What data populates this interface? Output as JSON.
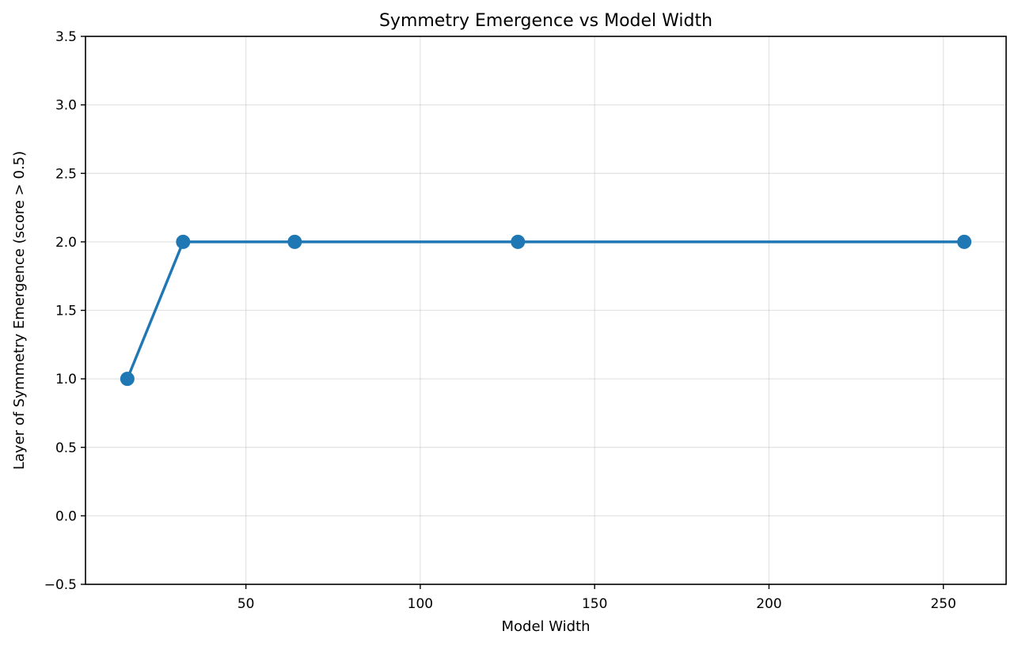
{
  "chart_data": {
    "type": "line",
    "title": "Symmetry Emergence vs Model Width",
    "xlabel": "Model Width",
    "ylabel": "Layer of Symmetry Emergence (score > 0.5)",
    "xlim": [
      4,
      268
    ],
    "ylim": [
      -0.5,
      3.5
    ],
    "xticks": [
      50,
      100,
      150,
      200,
      250
    ],
    "yticks": [
      -0.5,
      0.0,
      0.5,
      1.0,
      1.5,
      2.0,
      2.5,
      3.0,
      3.5
    ],
    "xtick_labels": [
      "50",
      "100",
      "150",
      "200",
      "250"
    ],
    "ytick_labels": [
      "−0.5",
      "0.0",
      "0.5",
      "1.0",
      "1.5",
      "2.0",
      "2.5",
      "3.0",
      "3.5"
    ],
    "grid": true,
    "series": [
      {
        "x": [
          16,
          32,
          64,
          128,
          256
        ],
        "values": [
          1,
          2,
          2,
          2,
          2
        ],
        "color": "#1f77b4",
        "marker": "circle"
      }
    ]
  }
}
